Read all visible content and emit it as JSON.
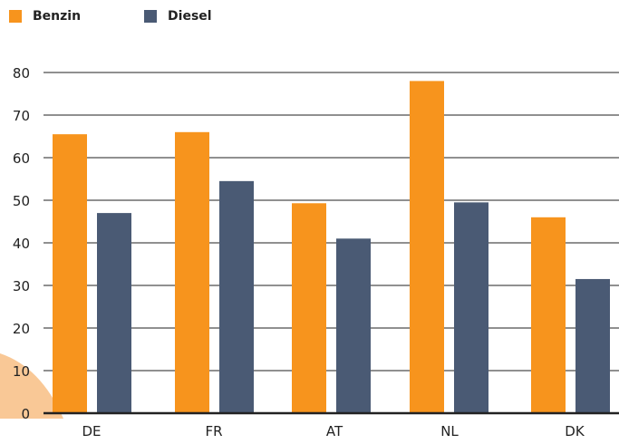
{
  "legend": {
    "items": [
      {
        "label": "Benzin",
        "color": "#f7941d"
      },
      {
        "label": "Diesel",
        "color": "#4a5a74"
      }
    ]
  },
  "chart_data": {
    "type": "bar",
    "categories": [
      "DE",
      "FR",
      "AT",
      "NL",
      "DK"
    ],
    "series": [
      {
        "name": "Benzin",
        "values": [
          65.5,
          66,
          49.3,
          78,
          46
        ],
        "color": "#f7941d"
      },
      {
        "name": "Diesel",
        "values": [
          47,
          54.5,
          41,
          49.5,
          31.5
        ],
        "color": "#4a5a74"
      }
    ],
    "yticks": [
      0,
      10,
      20,
      30,
      40,
      50,
      60,
      70,
      80
    ],
    "ylim": [
      0,
      80
    ],
    "grid": true,
    "legend_position": "top-left",
    "decoration_color": "#f9c896"
  }
}
